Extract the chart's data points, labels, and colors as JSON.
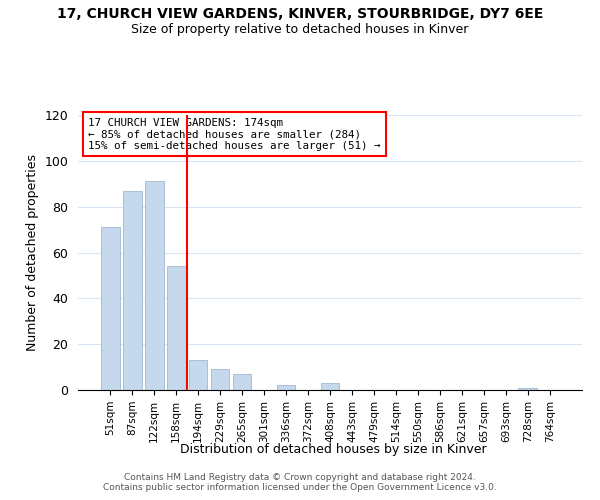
{
  "title": "17, CHURCH VIEW GARDENS, KINVER, STOURBRIDGE, DY7 6EE",
  "subtitle": "Size of property relative to detached houses in Kinver",
  "xlabel": "Distribution of detached houses by size in Kinver",
  "ylabel": "Number of detached properties",
  "bar_labels": [
    "51sqm",
    "87sqm",
    "122sqm",
    "158sqm",
    "194sqm",
    "229sqm",
    "265sqm",
    "301sqm",
    "336sqm",
    "372sqm",
    "408sqm",
    "443sqm",
    "479sqm",
    "514sqm",
    "550sqm",
    "586sqm",
    "621sqm",
    "657sqm",
    "693sqm",
    "728sqm",
    "764sqm"
  ],
  "bar_values": [
    71,
    87,
    91,
    54,
    13,
    9,
    7,
    0,
    2,
    0,
    3,
    0,
    0,
    0,
    0,
    0,
    0,
    0,
    0,
    1,
    0
  ],
  "bar_color": "#c6d9ec",
  "bar_edge_color": "#a0b8d0",
  "grid_color": "#d8e4f0",
  "vline_x": 3.5,
  "vline_color": "red",
  "annotation_text": "17 CHURCH VIEW GARDENS: 174sqm\n← 85% of detached houses are smaller (284)\n15% of semi-detached houses are larger (51) →",
  "annotation_box_color": "white",
  "annotation_box_edge_color": "red",
  "ylim": [
    0,
    120
  ],
  "yticks": [
    0,
    20,
    40,
    60,
    80,
    100,
    120
  ],
  "footer_line1": "Contains HM Land Registry data © Crown copyright and database right 2024.",
  "footer_line2": "Contains public sector information licensed under the Open Government Licence v3.0."
}
